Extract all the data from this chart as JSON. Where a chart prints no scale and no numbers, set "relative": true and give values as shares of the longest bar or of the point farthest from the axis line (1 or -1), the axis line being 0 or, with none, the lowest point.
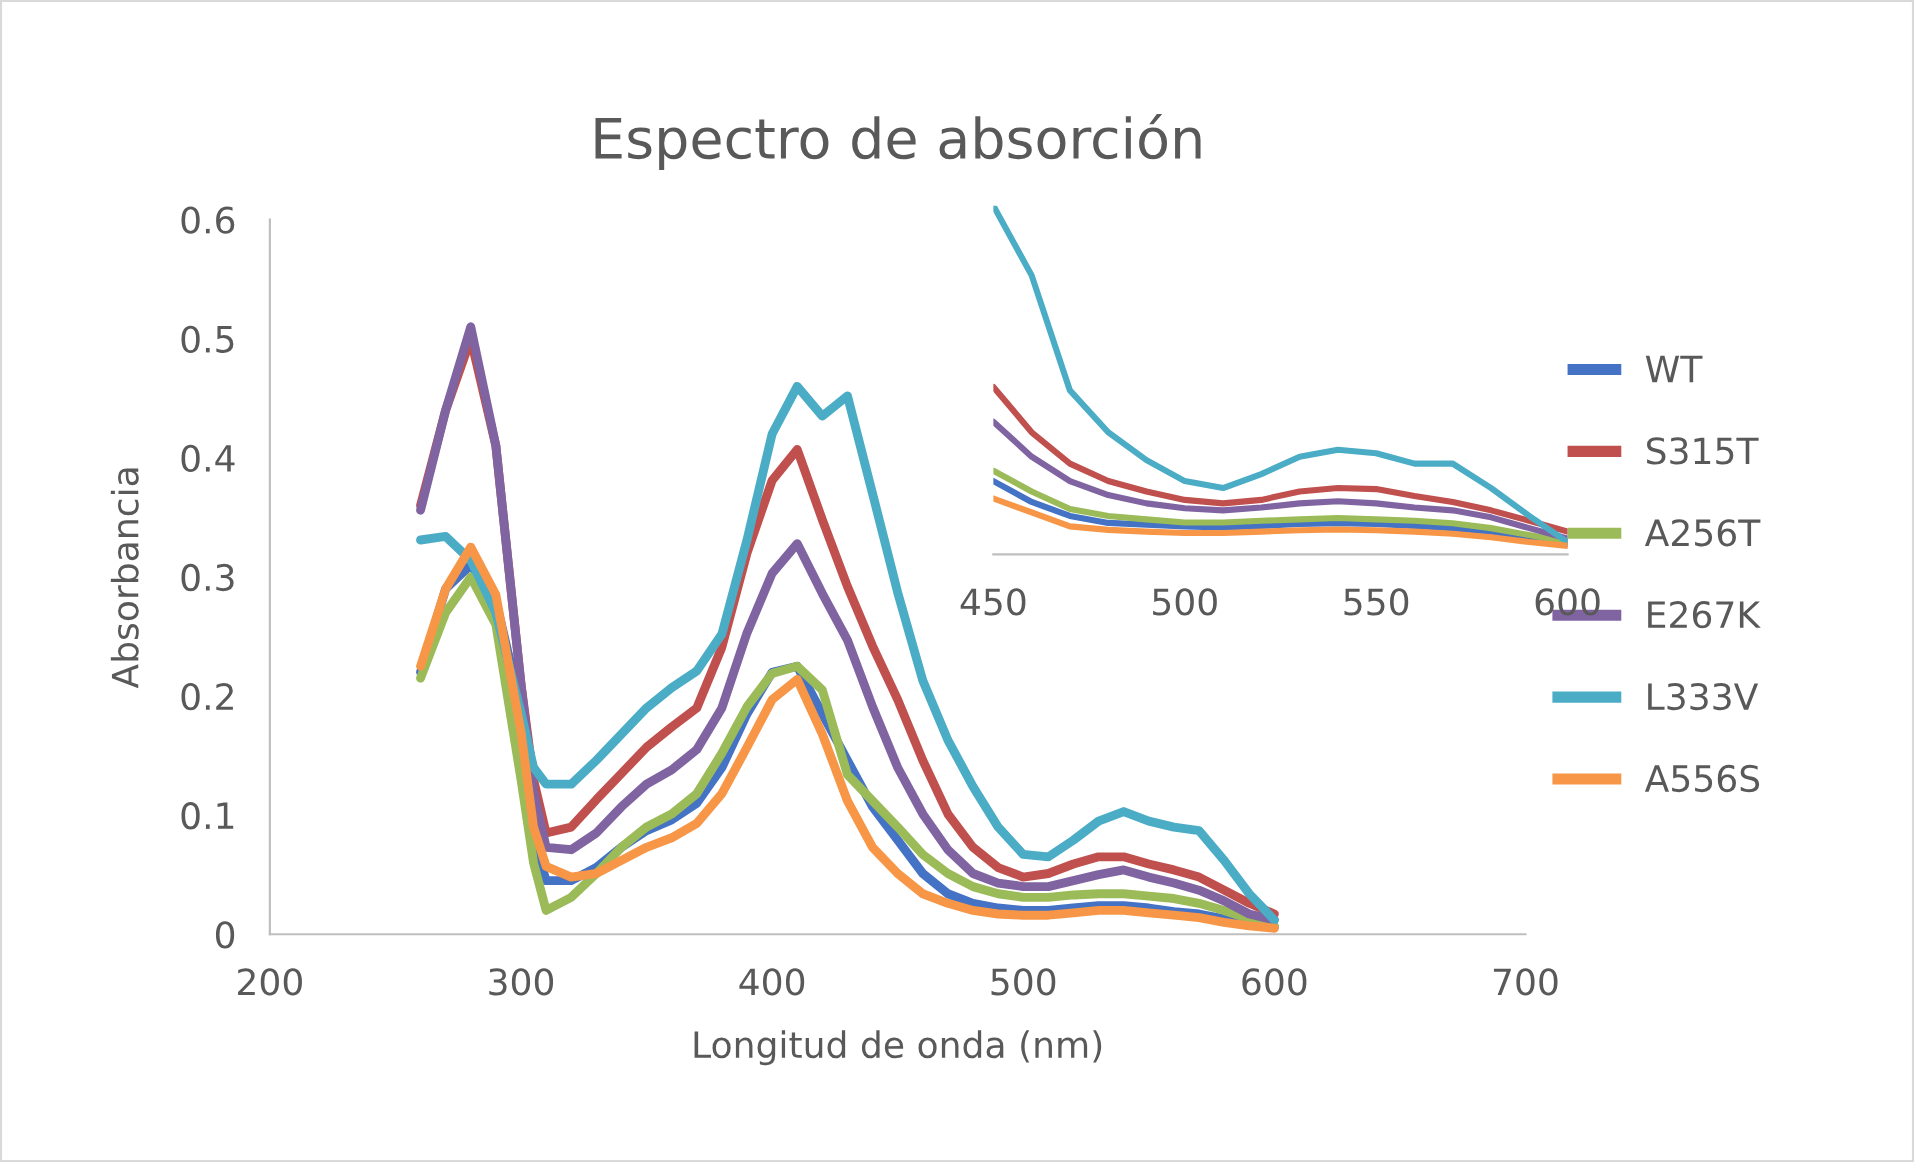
{
  "chart_data": [
    {
      "type": "line",
      "title": "Espectro de absorción",
      "xlabel": "Longitud de onda (nm)",
      "ylabel": "Absorbancia",
      "x": [
        260,
        270,
        280,
        290,
        300,
        305,
        310,
        320,
        330,
        340,
        350,
        360,
        370,
        380,
        390,
        400,
        410,
        420,
        430,
        440,
        450,
        460,
        470,
        480,
        490,
        500,
        510,
        520,
        530,
        540,
        550,
        560,
        570,
        580,
        590,
        600
      ],
      "series": [
        {
          "name": "WT",
          "color": "#4472c4",
          "values": [
            0.22,
            0.29,
            0.31,
            0.28,
            0.19,
            0.08,
            0.045,
            0.045,
            0.056,
            0.073,
            0.087,
            0.096,
            0.11,
            0.14,
            0.185,
            0.22,
            0.225,
            0.185,
            0.146,
            0.107,
            0.079,
            0.051,
            0.034,
            0.026,
            0.022,
            0.02,
            0.02,
            0.022,
            0.024,
            0.024,
            0.022,
            0.019,
            0.017,
            0.013,
            0.009,
            0.006
          ]
        },
        {
          "name": "S315T",
          "color": "#c0504d",
          "values": [
            0.36,
            0.44,
            0.5,
            0.41,
            0.21,
            0.13,
            0.085,
            0.09,
            0.113,
            0.135,
            0.157,
            0.174,
            0.19,
            0.241,
            0.32,
            0.381,
            0.407,
            0.348,
            0.292,
            0.242,
            0.197,
            0.146,
            0.101,
            0.073,
            0.056,
            0.048,
            0.051,
            0.059,
            0.065,
            0.065,
            0.059,
            0.054,
            0.048,
            0.037,
            0.026,
            0.017
          ]
        },
        {
          "name": "A256T",
          "color": "#9bbb59",
          "values": [
            0.215,
            0.27,
            0.3,
            0.26,
            0.13,
            0.06,
            0.02,
            0.031,
            0.051,
            0.073,
            0.09,
            0.101,
            0.118,
            0.152,
            0.191,
            0.219,
            0.225,
            0.205,
            0.134,
            0.112,
            0.09,
            0.067,
            0.051,
            0.04,
            0.034,
            0.031,
            0.031,
            0.033,
            0.034,
            0.034,
            0.032,
            0.03,
            0.026,
            0.02,
            0.013,
            0.007
          ]
        },
        {
          "name": "E267K",
          "color": "#8064a2",
          "values": [
            0.356,
            0.44,
            0.51,
            0.41,
            0.21,
            0.12,
            0.073,
            0.071,
            0.085,
            0.107,
            0.126,
            0.138,
            0.155,
            0.19,
            0.253,
            0.303,
            0.328,
            0.286,
            0.247,
            0.191,
            0.14,
            0.101,
            0.071,
            0.051,
            0.043,
            0.04,
            0.04,
            0.045,
            0.05,
            0.054,
            0.048,
            0.043,
            0.037,
            0.028,
            0.017,
            0.012
          ]
        },
        {
          "name": "L333V",
          "color": "#4bacc6",
          "values": [
            0.331,
            0.334,
            0.314,
            0.27,
            0.186,
            0.14,
            0.126,
            0.126,
            0.146,
            0.168,
            0.19,
            0.207,
            0.221,
            0.252,
            0.331,
            0.42,
            0.46,
            0.435,
            0.452,
            0.37,
            0.287,
            0.213,
            0.163,
            0.124,
            0.09,
            0.067,
            0.065,
            0.079,
            0.095,
            0.103,
            0.095,
            0.09,
            0.087,
            0.062,
            0.034,
            0.012
          ]
        },
        {
          "name": "A556S",
          "color": "#f79646",
          "values": [
            0.225,
            0.29,
            0.325,
            0.285,
            0.17,
            0.09,
            0.057,
            0.048,
            0.051,
            0.062,
            0.073,
            0.081,
            0.093,
            0.118,
            0.157,
            0.197,
            0.214,
            0.168,
            0.112,
            0.073,
            0.051,
            0.034,
            0.026,
            0.02,
            0.017,
            0.016,
            0.016,
            0.018,
            0.02,
            0.02,
            0.018,
            0.016,
            0.014,
            0.01,
            0.007,
            0.005
          ]
        }
      ],
      "xlim": [
        200,
        700
      ],
      "xticks": [
        200,
        300,
        400,
        500,
        600,
        700
      ],
      "ylim": [
        0,
        0.6
      ],
      "yticks": [
        0,
        0.1,
        0.2,
        0.3,
        0.4,
        0.5,
        0.6
      ],
      "grid": false,
      "legend": "right",
      "marker": "none",
      "line_style": "solid"
    },
    {
      "type": "line",
      "relative": true,
      "tick_labels": "x",
      "x": [
        450,
        460,
        470,
        480,
        490,
        500,
        510,
        520,
        530,
        540,
        550,
        560,
        570,
        580,
        590,
        600
      ],
      "series": [
        {
          "color": "#4472c4",
          "values": [
            0.21,
            0.15,
            0.11,
            0.09,
            0.085,
            0.08,
            0.077,
            0.081,
            0.087,
            0.089,
            0.087,
            0.081,
            0.075,
            0.065,
            0.045,
            0.028
          ]
        },
        {
          "color": "#c0504d",
          "values": [
            0.48,
            0.35,
            0.26,
            0.21,
            0.18,
            0.156,
            0.146,
            0.156,
            0.18,
            0.19,
            0.187,
            0.167,
            0.15,
            0.126,
            0.096,
            0.065
          ]
        },
        {
          "color": "#9bbb59",
          "values": [
            0.24,
            0.18,
            0.13,
            0.11,
            0.1,
            0.091,
            0.091,
            0.096,
            0.1,
            0.104,
            0.1,
            0.096,
            0.089,
            0.075,
            0.055,
            0.035
          ]
        },
        {
          "color": "#8064a2",
          "values": [
            0.38,
            0.28,
            0.21,
            0.17,
            0.146,
            0.132,
            0.126,
            0.134,
            0.146,
            0.152,
            0.146,
            0.134,
            0.126,
            0.106,
            0.075,
            0.045
          ]
        },
        {
          "color": "#4bacc6",
          "values": [
            1,
            0.8,
            0.47,
            0.35,
            0.27,
            0.21,
            0.19,
            0.23,
            0.28,
            0.3,
            0.29,
            0.26,
            0.26,
            0.19,
            0.11,
            0.035
          ]
        },
        {
          "color": "#f79646",
          "values": [
            0.16,
            0.12,
            0.08,
            0.07,
            0.065,
            0.061,
            0.061,
            0.065,
            0.069,
            0.071,
            0.069,
            0.065,
            0.059,
            0.049,
            0.035,
            0.024
          ]
        }
      ],
      "xlim": [
        450,
        600
      ],
      "xticks": [
        450,
        500,
        550,
        600
      ],
      "grid": false,
      "legend": false,
      "marker": "none",
      "line_style": "solid"
    }
  ]
}
